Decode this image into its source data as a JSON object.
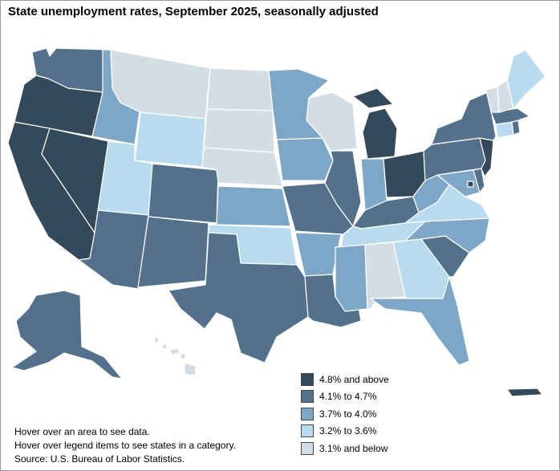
{
  "title": "State unemployment rates, September 2025, seasonally adjusted",
  "legend": [
    {
      "label": "4.8% and above",
      "color": "#34495a"
    },
    {
      "label": "4.1% to 4.7%",
      "color": "#53718c"
    },
    {
      "label": "3.7% to 4.0%",
      "color": "#7ea6c6"
    },
    {
      "label": "3.2% to 3.6%",
      "color": "#b8dbef"
    },
    {
      "label": "3.1% and below",
      "color": "#d2dde6"
    }
  ],
  "notes": {
    "hover_area": "Hover over an area to see data.",
    "hover_legend": "Hover over legend items to see states in a category.",
    "source": "Source: U.S. Bureau of Labor Statistics."
  },
  "state_categories": {
    "WA": 2,
    "OR": 1,
    "CA": 1,
    "NV": 1,
    "ID": 3,
    "MT": 5,
    "WY": 4,
    "UT": 4,
    "AZ": 2,
    "CO": 2,
    "NM": 2,
    "ND": 5,
    "SD": 5,
    "NE": 5,
    "KS": 3,
    "OK": 4,
    "TX": 2,
    "MN": 3,
    "IA": 3,
    "MO": 2,
    "AR": 3,
    "LA": 2,
    "WI": 5,
    "IL": 2,
    "MI": 1,
    "IN": 3,
    "OH": 1,
    "KY": 2,
    "TN": 4,
    "MS": 3,
    "AL": 5,
    "GA": 4,
    "FL": 3,
    "SC": 2,
    "NC": 3,
    "VA": 4,
    "WV": 3,
    "MD": 3,
    "DE": 2,
    "NJ": 1,
    "PA": 2,
    "NY": 2,
    "CT": 4,
    "RI": 2,
    "MA": 2,
    "VT": 5,
    "NH": 5,
    "ME": 4,
    "DC": 1,
    "AK": 2,
    "HI": 5,
    "PR": 1
  }
}
